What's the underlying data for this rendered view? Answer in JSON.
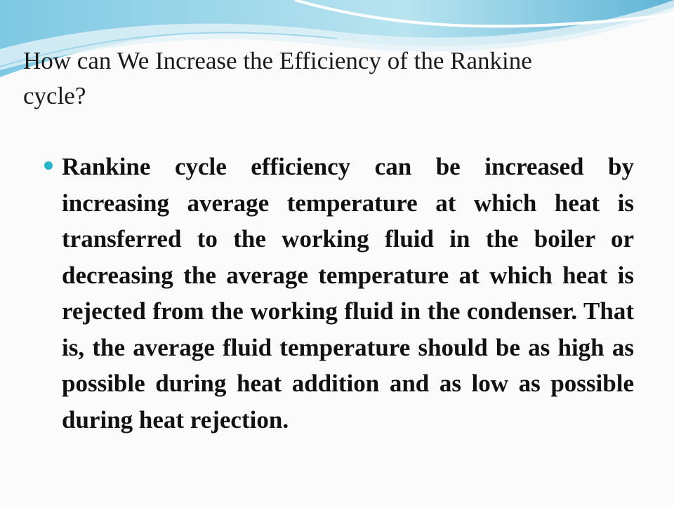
{
  "title": "How can We Increase the Efficiency of the Rankine cycle?",
  "bullets": [
    "Rankine cycle efficiency can be increased by increasing average temperature at which heat is transferred to the working fluid in the boiler or decreasing the average temperature at which heat is rejected from the working fluid in the condenser. That is, the average fluid temperature should be as high as possible during heat addition and as low as possible during heat rejection."
  ]
}
